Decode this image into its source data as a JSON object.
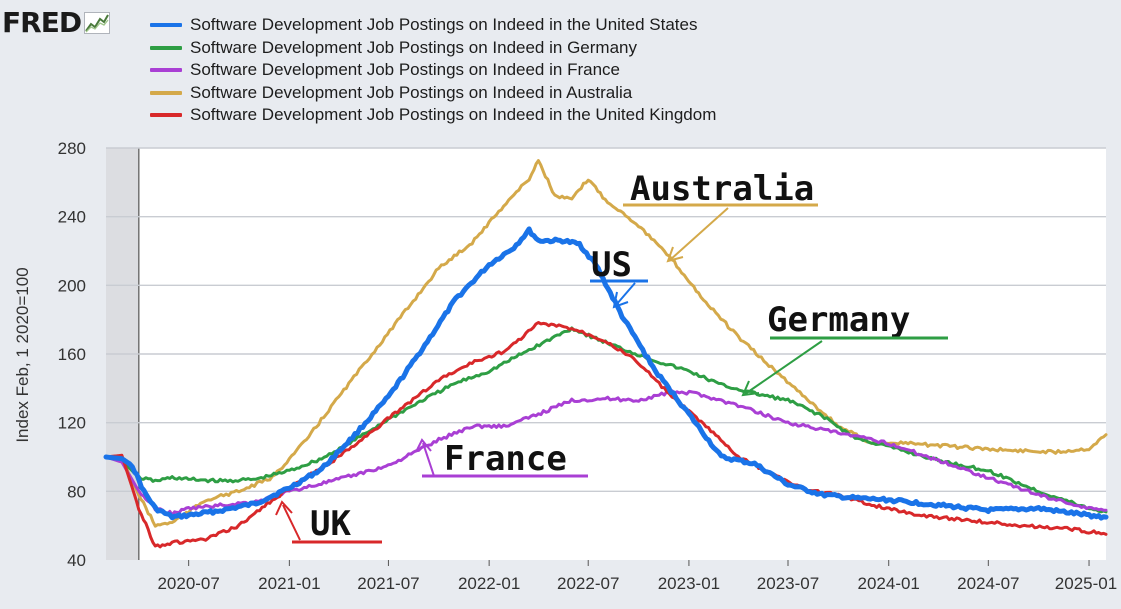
{
  "header": {
    "logo_text": "FRED"
  },
  "legend": [
    {
      "label": "Software Development Job Postings on Indeed in the United States",
      "color": "#1a73e8"
    },
    {
      "label": "Software Development Job Postings on Indeed in Germany",
      "color": "#2e9e44"
    },
    {
      "label": "Software Development Job Postings on Indeed in France",
      "color": "#a93fd4"
    },
    {
      "label": "Software Development Job Postings on Indeed in Australia",
      "color": "#d4a94a"
    },
    {
      "label": "Software Development Job Postings on Indeed in the United Kingdom",
      "color": "#d8282a"
    }
  ],
  "annotations": [
    "Australia",
    "US",
    "Germany",
    "France",
    "UK"
  ],
  "chart_data": {
    "type": "line",
    "ylabel": "Index Feb, 1 2020=100",
    "ylim": [
      40,
      280
    ],
    "yticks": [
      40,
      80,
      120,
      160,
      200,
      240,
      280
    ],
    "xlim": [
      "2020-02-01",
      "2025-02-01"
    ],
    "xticks": [
      "2020-07",
      "2021-01",
      "2021-07",
      "2022-01",
      "2022-07",
      "2023-01",
      "2023-07",
      "2024-01",
      "2024-07",
      "2025-01"
    ],
    "shaded_range": [
      "2020-02-01",
      "2020-04-01"
    ],
    "grid": true,
    "series": [
      {
        "name": "Software Development Job Postings on Indeed in the United States",
        "color": "#1a73e8",
        "width": 5,
        "points": [
          [
            "2020-02-01",
            100
          ],
          [
            "2020-03-01",
            99
          ],
          [
            "2020-03-20",
            95
          ],
          [
            "2020-04-10",
            80
          ],
          [
            "2020-05-01",
            70
          ],
          [
            "2020-06-01",
            65
          ],
          [
            "2020-07-01",
            66
          ],
          [
            "2020-09-01",
            69
          ],
          [
            "2020-11-01",
            73
          ],
          [
            "2021-01-01",
            82
          ],
          [
            "2021-03-01",
            93
          ],
          [
            "2021-05-01",
            113
          ],
          [
            "2021-07-01",
            135
          ],
          [
            "2021-09-01",
            163
          ],
          [
            "2021-11-01",
            192
          ],
          [
            "2022-01-01",
            212
          ],
          [
            "2022-02-15",
            222
          ],
          [
            "2022-03-15",
            232
          ],
          [
            "2022-04-01",
            226
          ],
          [
            "2022-05-15",
            226
          ],
          [
            "2022-06-15",
            224
          ],
          [
            "2022-07-15",
            212
          ],
          [
            "2022-09-01",
            182
          ],
          [
            "2022-11-01",
            150
          ],
          [
            "2023-01-01",
            125
          ],
          [
            "2023-03-01",
            100
          ],
          [
            "2023-05-01",
            96
          ],
          [
            "2023-07-01",
            84
          ],
          [
            "2023-09-01",
            78
          ],
          [
            "2023-11-01",
            76
          ],
          [
            "2024-01-01",
            75
          ],
          [
            "2024-04-01",
            72
          ],
          [
            "2024-07-01",
            69
          ],
          [
            "2024-10-01",
            70
          ],
          [
            "2025-01-01",
            66
          ],
          [
            "2025-02-01",
            65
          ]
        ]
      },
      {
        "name": "Software Development Job Postings on Indeed in Germany",
        "color": "#2e9e44",
        "width": 3,
        "points": [
          [
            "2020-02-01",
            100
          ],
          [
            "2020-03-01",
            98
          ],
          [
            "2020-04-01",
            88
          ],
          [
            "2020-05-01",
            86
          ],
          [
            "2020-06-01",
            88
          ],
          [
            "2020-07-01",
            87
          ],
          [
            "2020-09-01",
            86
          ],
          [
            "2020-11-01",
            87
          ],
          [
            "2021-01-01",
            92
          ],
          [
            "2021-03-01",
            99
          ],
          [
            "2021-05-01",
            110
          ],
          [
            "2021-07-01",
            122
          ],
          [
            "2021-09-01",
            133
          ],
          [
            "2021-11-01",
            143
          ],
          [
            "2022-01-01",
            150
          ],
          [
            "2022-03-01",
            160
          ],
          [
            "2022-05-01",
            170
          ],
          [
            "2022-06-01",
            175
          ],
          [
            "2022-07-15",
            169
          ],
          [
            "2022-09-01",
            163
          ],
          [
            "2022-11-01",
            156
          ],
          [
            "2023-01-01",
            150
          ],
          [
            "2023-03-01",
            142
          ],
          [
            "2023-05-01",
            137
          ],
          [
            "2023-07-01",
            133
          ],
          [
            "2023-09-01",
            124
          ],
          [
            "2023-11-01",
            111
          ],
          [
            "2024-01-01",
            106
          ],
          [
            "2024-04-01",
            98
          ],
          [
            "2024-07-01",
            92
          ],
          [
            "2024-10-01",
            80
          ],
          [
            "2025-01-01",
            70
          ],
          [
            "2025-02-01",
            68
          ]
        ]
      },
      {
        "name": "Software Development Job Postings on Indeed in France",
        "color": "#a93fd4",
        "width": 3,
        "points": [
          [
            "2020-02-01",
            100
          ],
          [
            "2020-03-01",
            97
          ],
          [
            "2020-04-01",
            80
          ],
          [
            "2020-05-01",
            70
          ],
          [
            "2020-06-01",
            67
          ],
          [
            "2020-07-01",
            70
          ],
          [
            "2020-09-01",
            72
          ],
          [
            "2020-11-01",
            74
          ],
          [
            "2021-01-01",
            80
          ],
          [
            "2021-04-01",
            87
          ],
          [
            "2021-07-01",
            95
          ],
          [
            "2021-10-01",
            110
          ],
          [
            "2021-12-01",
            118
          ],
          [
            "2022-02-01",
            118
          ],
          [
            "2022-04-01",
            125
          ],
          [
            "2022-06-01",
            133
          ],
          [
            "2022-08-01",
            134
          ],
          [
            "2022-10-01",
            133
          ],
          [
            "2022-12-01",
            138
          ],
          [
            "2023-01-15",
            137
          ],
          [
            "2023-04-01",
            130
          ],
          [
            "2023-07-01",
            120
          ],
          [
            "2023-10-01",
            114
          ],
          [
            "2024-01-01",
            108
          ],
          [
            "2024-04-01",
            98
          ],
          [
            "2024-07-01",
            88
          ],
          [
            "2024-10-01",
            78
          ],
          [
            "2025-01-01",
            70
          ],
          [
            "2025-02-01",
            69
          ]
        ]
      },
      {
        "name": "Software Development Job Postings on Indeed in Australia",
        "color": "#d4a94a",
        "width": 3,
        "points": [
          [
            "2020-02-01",
            100
          ],
          [
            "2020-03-01",
            99
          ],
          [
            "2020-04-01",
            78
          ],
          [
            "2020-05-01",
            60
          ],
          [
            "2020-06-01",
            62
          ],
          [
            "2020-07-01",
            68
          ],
          [
            "2020-08-01",
            75
          ],
          [
            "2020-10-01",
            80
          ],
          [
            "2020-12-01",
            88
          ],
          [
            "2021-02-01",
            110
          ],
          [
            "2021-04-01",
            135
          ],
          [
            "2021-06-01",
            160
          ],
          [
            "2021-08-01",
            185
          ],
          [
            "2021-10-01",
            210
          ],
          [
            "2021-12-01",
            225
          ],
          [
            "2022-02-01",
            248
          ],
          [
            "2022-03-15",
            262
          ],
          [
            "2022-04-01",
            273
          ],
          [
            "2022-05-01",
            252
          ],
          [
            "2022-06-01",
            250
          ],
          [
            "2022-07-01",
            262
          ],
          [
            "2022-08-01",
            250
          ],
          [
            "2022-10-01",
            235
          ],
          [
            "2022-12-01",
            215
          ],
          [
            "2023-02-01",
            190
          ],
          [
            "2023-04-01",
            170
          ],
          [
            "2023-06-01",
            152
          ],
          [
            "2023-08-01",
            135
          ],
          [
            "2023-10-01",
            118
          ],
          [
            "2023-12-01",
            108
          ],
          [
            "2024-02-01",
            108
          ],
          [
            "2024-05-01",
            106
          ],
          [
            "2024-08-01",
            104
          ],
          [
            "2024-11-01",
            103
          ],
          [
            "2025-01-01",
            105
          ],
          [
            "2025-02-01",
            113
          ]
        ]
      },
      {
        "name": "Software Development Job Postings on Indeed in the United Kingdom",
        "color": "#d8282a",
        "width": 3,
        "points": [
          [
            "2020-02-01",
            100
          ],
          [
            "2020-03-01",
            101
          ],
          [
            "2020-04-01",
            70
          ],
          [
            "2020-05-01",
            48
          ],
          [
            "2020-06-01",
            50
          ],
          [
            "2020-08-01",
            52
          ],
          [
            "2020-10-01",
            60
          ],
          [
            "2020-12-01",
            75
          ],
          [
            "2021-02-01",
            88
          ],
          [
            "2021-04-01",
            100
          ],
          [
            "2021-06-01",
            115
          ],
          [
            "2021-08-01",
            130
          ],
          [
            "2021-10-01",
            145
          ],
          [
            "2021-12-01",
            155
          ],
          [
            "2022-02-01",
            162
          ],
          [
            "2022-04-01",
            178
          ],
          [
            "2022-06-01",
            175
          ],
          [
            "2022-08-01",
            168
          ],
          [
            "2022-10-01",
            155
          ],
          [
            "2022-12-01",
            135
          ],
          [
            "2023-02-01",
            118
          ],
          [
            "2023-04-01",
            100
          ],
          [
            "2023-06-01",
            90
          ],
          [
            "2023-08-01",
            81
          ],
          [
            "2023-10-01",
            78
          ],
          [
            "2023-12-01",
            72
          ],
          [
            "2024-03-01",
            66
          ],
          [
            "2024-06-01",
            63
          ],
          [
            "2024-09-01",
            60
          ],
          [
            "2024-12-01",
            58
          ],
          [
            "2025-02-01",
            55
          ]
        ]
      }
    ]
  }
}
